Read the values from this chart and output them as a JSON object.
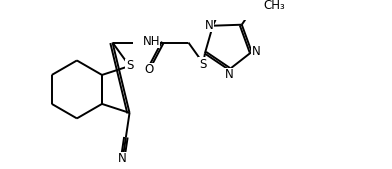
{
  "bg": "#ffffff",
  "lc": "#000000",
  "lw": 1.4,
  "fs": 8.5,
  "fig_w": 3.92,
  "fig_h": 1.69,
  "dpi": 100,
  "xlim": [
    0,
    10.5
  ],
  "ylim": [
    0.0,
    4.6
  ]
}
